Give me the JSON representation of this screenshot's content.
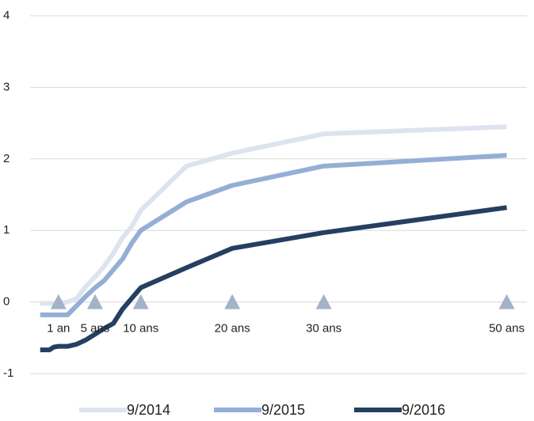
{
  "chart_data": {
    "type": "line",
    "x": [
      -1,
      0,
      0.5,
      1,
      2,
      3,
      4,
      5,
      6,
      7,
      8,
      9,
      10,
      15,
      20,
      30,
      50
    ],
    "series": [
      {
        "name": "9/2014",
        "color": "#dde4ef",
        "values": [
          -0.02,
          -0.02,
          -0.02,
          -0.02,
          0,
          0.05,
          0.22,
          0.35,
          0.5,
          0.68,
          0.9,
          1.05,
          1.28,
          1.9,
          2.08,
          2.35,
          2.45
        ]
      },
      {
        "name": "9/2015",
        "color": "#94afd6",
        "values": [
          -0.18,
          -0.18,
          -0.18,
          -0.18,
          -0.18,
          -0.05,
          0.08,
          0.2,
          0.3,
          0.45,
          0.6,
          0.82,
          1.0,
          1.4,
          1.63,
          1.9,
          2.05
        ]
      },
      {
        "name": "9/2016",
        "color": "#243f60",
        "values": [
          -0.67,
          -0.67,
          -0.63,
          -0.62,
          -0.62,
          -0.59,
          -0.53,
          -0.45,
          -0.37,
          -0.3,
          -0.1,
          0.05,
          0.2,
          0.48,
          0.75,
          0.97,
          1.32
        ]
      }
    ],
    "xlim": [
      -2.1,
      52.2
    ],
    "xticks": [
      {
        "value": 1,
        "label": "1 an"
      },
      {
        "value": 5,
        "label": "5 ans"
      },
      {
        "value": 10,
        "label": "10 ans"
      },
      {
        "value": 20,
        "label": "20 ans"
      },
      {
        "value": 30,
        "label": "30 ans"
      },
      {
        "value": 50,
        "label": "50 ans"
      }
    ],
    "ylim": [
      -1,
      4
    ],
    "yticks": [
      -1,
      0,
      1,
      2,
      3,
      4
    ],
    "grid": true,
    "legend": "bottom",
    "marker_color": "#a3b2c7"
  }
}
